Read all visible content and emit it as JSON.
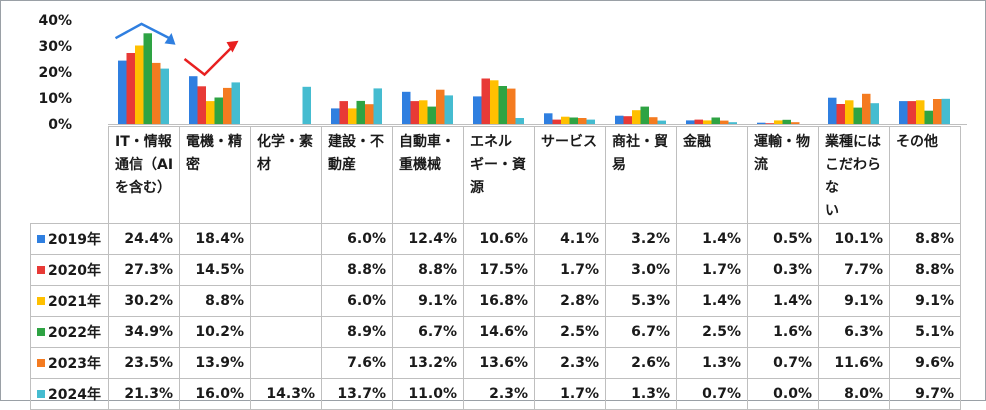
{
  "chart_data": {
    "type": "bar",
    "categories": [
      "IT・情報通信（AIを含む）",
      "電機・精密",
      "化学・素材",
      "建設・不動産",
      "自動車・重機械",
      "エネルギー・資源",
      "サービス",
      "商社・貿易",
      "金融",
      "運輸・物流",
      "業種にはこだわらない",
      "その他"
    ],
    "series": [
      {
        "name": "2019年",
        "color": "#2f7fe0",
        "values": [
          24.4,
          18.4,
          null,
          6.0,
          12.4,
          10.6,
          4.1,
          3.2,
          1.4,
          0.5,
          10.1,
          8.8
        ],
        "labels": [
          "24.4%",
          "18.4%",
          "",
          "6.0%",
          "12.4%",
          "10.6%",
          "4.1%",
          "3.2%",
          "1.4%",
          "0.5%",
          "10.1%",
          "8.8%"
        ]
      },
      {
        "name": "2020年",
        "color": "#e83a36",
        "values": [
          27.3,
          14.5,
          null,
          8.8,
          8.8,
          17.5,
          1.7,
          3.0,
          1.7,
          0.3,
          7.7,
          8.8
        ],
        "labels": [
          "27.3%",
          "14.5%",
          "",
          "8.8%",
          "8.8%",
          "17.5%",
          "1.7%",
          "3.0%",
          "1.7%",
          "0.3%",
          "7.7%",
          "8.8%"
        ]
      },
      {
        "name": "2021年",
        "color": "#ffc000",
        "values": [
          30.2,
          8.8,
          null,
          6.0,
          9.1,
          16.8,
          2.8,
          5.3,
          1.4,
          1.4,
          9.1,
          9.1
        ],
        "labels": [
          "30.2%",
          "8.8%",
          "",
          "6.0%",
          "9.1%",
          "16.8%",
          "2.8%",
          "5.3%",
          "1.4%",
          "1.4%",
          "9.1%",
          "9.1%"
        ]
      },
      {
        "name": "2022年",
        "color": "#2ea343",
        "values": [
          34.9,
          10.2,
          null,
          8.9,
          6.7,
          14.6,
          2.5,
          6.7,
          2.5,
          1.6,
          6.3,
          5.1
        ],
        "labels": [
          "34.9%",
          "10.2%",
          "",
          "8.9%",
          "6.7%",
          "14.6%",
          "2.5%",
          "6.7%",
          "2.5%",
          "1.6%",
          "6.3%",
          "5.1%"
        ]
      },
      {
        "name": "2023年",
        "color": "#f47b20",
        "values": [
          23.5,
          13.9,
          null,
          7.6,
          13.2,
          13.6,
          2.3,
          2.6,
          1.3,
          0.7,
          11.6,
          9.6
        ],
        "labels": [
          "23.5%",
          "13.9%",
          "",
          "7.6%",
          "13.2%",
          "13.6%",
          "2.3%",
          "2.6%",
          "1.3%",
          "0.7%",
          "11.6%",
          "9.6%"
        ]
      },
      {
        "name": "2024年",
        "color": "#45bcd0",
        "values": [
          21.3,
          16.0,
          14.3,
          13.7,
          11.0,
          2.3,
          1.7,
          1.3,
          0.7,
          0.0,
          8.0,
          9.7
        ],
        "labels": [
          "21.3%",
          "16.0%",
          "14.3%",
          "13.7%",
          "11.0%",
          "2.3%",
          "1.7%",
          "1.3%",
          "0.7%",
          "0.0%",
          "8.0%",
          "9.7%"
        ]
      }
    ],
    "category_lines": [
      [
        "IT・情報",
        "通信（AI",
        "を含む）"
      ],
      [
        "電機・精",
        "密"
      ],
      [
        "化学・素",
        "材"
      ],
      [
        "建設・不",
        "動産"
      ],
      [
        "自動車・",
        "重機械"
      ],
      [
        "エネル",
        "ギー・資源"
      ],
      [
        "サービス"
      ],
      [
        "商社・貿",
        "易"
      ],
      [
        "金融"
      ],
      [
        "運輸・物",
        "流"
      ],
      [
        "業種には",
        "こだわらな",
        "い"
      ],
      [
        "その他"
      ]
    ],
    "ylim": [
      0,
      40
    ],
    "yticks": [
      "0%",
      "10%",
      "20%",
      "30%",
      "40%"
    ],
    "grid": false,
    "legend": "data-table",
    "annotations": [
      {
        "type": "arrow",
        "shape": "peak-then-down",
        "color": "#2f7fe0",
        "category": "IT・情報通信（AIを含む）"
      },
      {
        "type": "arrow",
        "shape": "dip-then-up",
        "color": "#e82020",
        "category": "電機・精密"
      }
    ]
  }
}
